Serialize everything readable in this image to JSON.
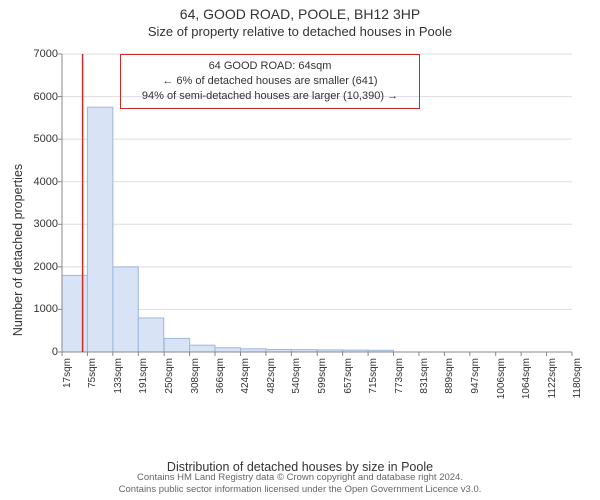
{
  "title_main": "64, GOOD ROAD, POOLE, BH12 3HP",
  "title_sub": "Size of property relative to detached houses in Poole",
  "chart": {
    "type": "histogram",
    "xlabel": "Distribution of detached houses by size in Poole",
    "ylabel": "Number of detached properties",
    "background_color": "#ffffff",
    "grid_color": "#dddddd",
    "axis_color": "#888888",
    "bar_fill": "#d8e3f5",
    "bar_stroke": "#9fb7de",
    "marker_line_color": "#c92a2a",
    "ylim": [
      0,
      7000
    ],
    "ytick_step": 1000,
    "yticks": [
      0,
      1000,
      2000,
      3000,
      4000,
      5000,
      6000,
      7000
    ],
    "xticks_sqm": [
      17,
      75,
      133,
      191,
      250,
      308,
      366,
      424,
      482,
      540,
      599,
      657,
      715,
      773,
      831,
      889,
      947,
      1006,
      1064,
      1122,
      1180
    ],
    "xtick_unit": "sqm",
    "bars": [
      {
        "x_sqm": 17,
        "count": 1800
      },
      {
        "x_sqm": 75,
        "count": 5750
      },
      {
        "x_sqm": 133,
        "count": 2000
      },
      {
        "x_sqm": 191,
        "count": 800
      },
      {
        "x_sqm": 250,
        "count": 320
      },
      {
        "x_sqm": 308,
        "count": 160
      },
      {
        "x_sqm": 366,
        "count": 100
      },
      {
        "x_sqm": 424,
        "count": 75
      },
      {
        "x_sqm": 482,
        "count": 60
      },
      {
        "x_sqm": 540,
        "count": 55
      },
      {
        "x_sqm": 599,
        "count": 50
      },
      {
        "x_sqm": 657,
        "count": 45
      },
      {
        "x_sqm": 715,
        "count": 40
      },
      {
        "x_sqm": 773,
        "count": 0
      },
      {
        "x_sqm": 831,
        "count": 0
      },
      {
        "x_sqm": 889,
        "count": 0
      },
      {
        "x_sqm": 947,
        "count": 0
      },
      {
        "x_sqm": 1006,
        "count": 0
      },
      {
        "x_sqm": 1064,
        "count": 0
      },
      {
        "x_sqm": 1122,
        "count": 0
      }
    ],
    "marker_sqm": 64,
    "info_box": {
      "line1": "64 GOOD ROAD: 64sqm",
      "line2": "← 6% of detached houses are smaller (641)",
      "line3": "94% of semi-detached houses are larger (10,390) →",
      "border_color": "#c92a2a"
    },
    "tick_fontsize": 11,
    "label_fontsize": 12.5
  },
  "footer": {
    "line1": "Contains HM Land Registry data © Crown copyright and database right 2024.",
    "line2": "Contains public sector information licensed under the Open Government Licence v3.0."
  }
}
